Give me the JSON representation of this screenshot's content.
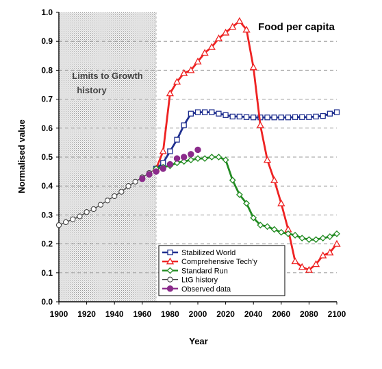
{
  "chart_data": {
    "type": "line",
    "title": "Food per capita",
    "xlabel": "Year",
    "ylabel": "Normalised value",
    "xlim": [
      1900,
      2100
    ],
    "ylim": [
      0,
      1
    ],
    "x_ticks": [
      "1900",
      "1920",
      "1940",
      "1960",
      "1980",
      "2000",
      "2020",
      "2040",
      "2060",
      "2080",
      "2100"
    ],
    "y_ticks": [
      "0.0",
      "0.1",
      "0.2",
      "0.3",
      "0.4",
      "0.5",
      "0.6",
      "0.7",
      "0.8",
      "0.9",
      "1.0"
    ],
    "grid": "horizontal dashed",
    "shaded_region": {
      "x": [
        1900,
        1970
      ],
      "label_line1": "Limits to Growth",
      "label_line2": "history"
    },
    "legend_position": "bottom-center",
    "series": [
      {
        "name": "Stabilized World",
        "color": "#1f2f8f",
        "marker": "square",
        "x": [
          1970,
          1975,
          1980,
          1985,
          1990,
          1995,
          2000,
          2005,
          2010,
          2015,
          2020,
          2025,
          2030,
          2035,
          2040,
          2045,
          2050,
          2055,
          2060,
          2065,
          2070,
          2075,
          2080,
          2085,
          2090,
          2095,
          2100
        ],
        "y": [
          0.46,
          0.48,
          0.52,
          0.56,
          0.61,
          0.65,
          0.655,
          0.655,
          0.655,
          0.65,
          0.645,
          0.64,
          0.64,
          0.638,
          0.637,
          0.637,
          0.637,
          0.637,
          0.637,
          0.637,
          0.638,
          0.638,
          0.638,
          0.64,
          0.642,
          0.65,
          0.655
        ]
      },
      {
        "name": "Comprehensive Tech'y",
        "color": "#ee2222",
        "marker": "triangle",
        "x": [
          1970,
          1975,
          1980,
          1985,
          1990,
          1995,
          2000,
          2005,
          2010,
          2015,
          2020,
          2025,
          2030,
          2035,
          2040,
          2045,
          2050,
          2055,
          2060,
          2065,
          2070,
          2075,
          2080,
          2085,
          2090,
          2095,
          2100
        ],
        "y": [
          0.46,
          0.52,
          0.72,
          0.76,
          0.79,
          0.8,
          0.83,
          0.86,
          0.88,
          0.91,
          0.93,
          0.95,
          0.97,
          0.94,
          0.81,
          0.61,
          0.49,
          0.42,
          0.34,
          0.25,
          0.14,
          0.12,
          0.11,
          0.13,
          0.16,
          0.17,
          0.2
        ]
      },
      {
        "name": "Standard Run",
        "color": "#228b22",
        "marker": "diamond",
        "x": [
          1970,
          1975,
          1980,
          1985,
          1990,
          1995,
          2000,
          2005,
          2010,
          2015,
          2020,
          2025,
          2030,
          2035,
          2040,
          2045,
          2050,
          2055,
          2060,
          2065,
          2070,
          2075,
          2080,
          2085,
          2090,
          2095,
          2100
        ],
        "y": [
          0.46,
          0.465,
          0.47,
          0.48,
          0.485,
          0.49,
          0.495,
          0.495,
          0.5,
          0.5,
          0.49,
          0.42,
          0.37,
          0.34,
          0.29,
          0.265,
          0.26,
          0.25,
          0.24,
          0.235,
          0.23,
          0.22,
          0.215,
          0.215,
          0.22,
          0.225,
          0.235
        ]
      },
      {
        "name": "LtG history",
        "color": "#444444",
        "marker": "circle-open",
        "x": [
          1900,
          1905,
          1910,
          1915,
          1920,
          1925,
          1930,
          1935,
          1940,
          1945,
          1950,
          1955,
          1960,
          1965,
          1970
        ],
        "y": [
          0.265,
          0.275,
          0.285,
          0.295,
          0.31,
          0.32,
          0.335,
          0.35,
          0.365,
          0.38,
          0.4,
          0.415,
          0.43,
          0.445,
          0.46
        ]
      },
      {
        "name": "Observed data",
        "color": "#8b2b8b",
        "marker": "circle-filled",
        "x": [
          1960,
          1965,
          1970,
          1975,
          1980,
          1985,
          1990,
          1995,
          2000
        ],
        "y": [
          0.425,
          0.44,
          0.45,
          0.46,
          0.475,
          0.495,
          0.5,
          0.51,
          0.525
        ]
      }
    ]
  }
}
